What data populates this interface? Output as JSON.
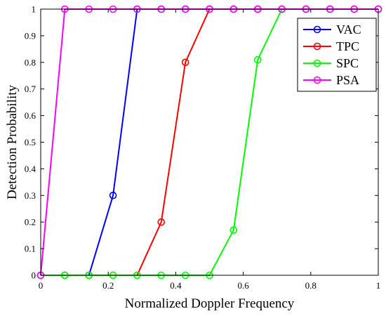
{
  "chart_data": {
    "type": "line",
    "xlabel": "Normalized Doppler Frequency",
    "ylabel": "Detection Probability",
    "xlim": [
      0,
      1
    ],
    "ylim": [
      0,
      1
    ],
    "xticks": [
      "0",
      "0.2",
      "0.4",
      "0.6",
      "0.8",
      "1"
    ],
    "yticks": [
      "0",
      "0.1",
      "0.2",
      "0.3",
      "0.4",
      "0.5",
      "0.6",
      "0.7",
      "0.8",
      "0.9",
      "1"
    ],
    "grid": false,
    "legend_position": "top-right",
    "x": [
      0,
      0.0714,
      0.1429,
      0.2143,
      0.2857,
      0.3571,
      0.4286,
      0.5,
      0.5714,
      0.6429,
      0.7143,
      0.7857,
      0.8571,
      0.9286,
      1
    ],
    "series": [
      {
        "name": "VAC",
        "color": "#0000ff",
        "values": [
          0,
          0,
          0,
          0.3,
          1,
          1,
          1,
          1,
          1,
          1,
          1,
          1,
          1,
          1,
          1
        ]
      },
      {
        "name": "TPC",
        "color": "#ff0000",
        "values": [
          0,
          0,
          0,
          0,
          0,
          0.2,
          0.8,
          1,
          1,
          1,
          1,
          1,
          1,
          1,
          1
        ]
      },
      {
        "name": "SPC",
        "color": "#00ff00",
        "values": [
          0,
          0,
          0,
          0,
          0,
          0,
          0,
          0,
          0.17,
          0.81,
          1,
          1,
          1,
          1,
          1
        ]
      },
      {
        "name": "PSA",
        "color": "#ff00ff",
        "values": [
          0,
          1,
          1,
          1,
          1,
          1,
          1,
          1,
          1,
          1,
          1,
          1,
          1,
          1,
          1
        ]
      }
    ]
  }
}
